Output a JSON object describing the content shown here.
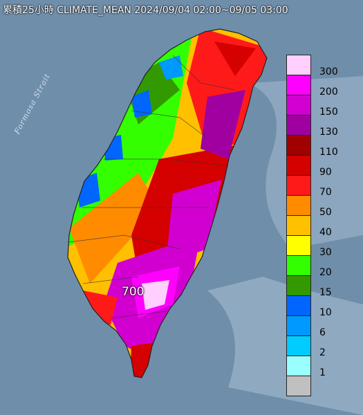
{
  "title": "累積25小時 CLIMATE_MEAN 2024/09/04 02:00~09/05 03:00",
  "strait_label": "Formosa Strait",
  "peak_label": "700",
  "legend": [
    {
      "label": "300",
      "color": "#ffcfff"
    },
    {
      "label": "200",
      "color": "#ff00ff"
    },
    {
      "label": "150",
      "color": "#d100d1"
    },
    {
      "label": "130",
      "color": "#a000a0"
    },
    {
      "label": "110",
      "color": "#a00000"
    },
    {
      "label": "90",
      "color": "#d50000"
    },
    {
      "label": "70",
      "color": "#ff1a1a"
    },
    {
      "label": "50",
      "color": "#ff8c00"
    },
    {
      "label": "40",
      "color": "#ffc000"
    },
    {
      "label": "30",
      "color": "#ffff00"
    },
    {
      "label": "20",
      "color": "#33ff00"
    },
    {
      "label": "15",
      "color": "#339900"
    },
    {
      "label": "10",
      "color": "#0066ff"
    },
    {
      "label": "6",
      "color": "#0099ff"
    },
    {
      "label": "2",
      "color": "#00ccff"
    },
    {
      "label": "1",
      "color": "#99ffff"
    },
    {
      "label": "",
      "color": "#c0c0c0"
    }
  ]
}
